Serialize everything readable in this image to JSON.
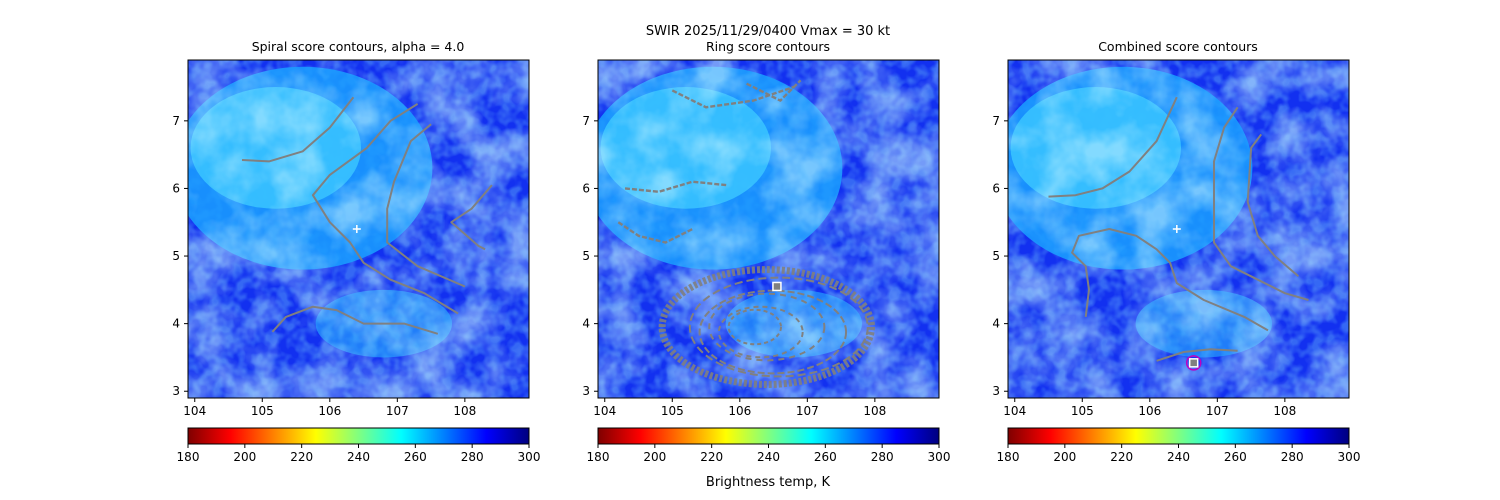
{
  "suptitle": {
    "line1": "SWIR  2025/11/29/0400    Vmax = 30 kt"
  },
  "colorbar_label": "Brightness temp, K",
  "colormap": {
    "name": "jet_r",
    "stops": [
      "#7f0000",
      "#ff0000",
      "#ff8000",
      "#ffff00",
      "#80ff80",
      "#00ffff",
      "#0080ff",
      "#0000ff",
      "#00007f"
    ]
  },
  "chart_data": [
    {
      "type": "heatmap",
      "title": "Spiral score contours, alpha =  4.0",
      "xlim": [
        103.9,
        108.95
      ],
      "ylim": [
        2.9,
        7.9
      ],
      "xticks": [
        "104",
        "105",
        "106",
        "107",
        "108"
      ],
      "yticks": [
        "3",
        "4",
        "5",
        "6",
        "7"
      ],
      "colorbar": {
        "range": [
          180,
          300
        ],
        "ticks": [
          "180",
          "200",
          "220",
          "240",
          "260",
          "280",
          "300"
        ]
      },
      "center_marker": {
        "x": 106.4,
        "y": 5.4,
        "color": "#ffffff"
      },
      "contour_color": "#808080",
      "contours": [
        [
          [
            104.7,
            6.42
          ],
          [
            105.1,
            6.4
          ],
          [
            105.6,
            6.55
          ],
          [
            106.0,
            6.9
          ],
          [
            106.35,
            7.35
          ]
        ],
        [
          [
            107.3,
            7.25
          ],
          [
            106.9,
            7.0
          ],
          [
            106.55,
            6.6
          ],
          [
            106.0,
            6.2
          ],
          [
            105.75,
            5.9
          ],
          [
            106.0,
            5.5
          ],
          [
            106.3,
            5.2
          ],
          [
            106.5,
            4.9
          ],
          [
            106.9,
            4.65
          ],
          [
            107.4,
            4.45
          ],
          [
            107.9,
            4.15
          ]
        ],
        [
          [
            107.5,
            6.95
          ],
          [
            107.2,
            6.7
          ],
          [
            106.95,
            6.1
          ],
          [
            106.85,
            5.7
          ],
          [
            106.85,
            5.2
          ],
          [
            107.3,
            4.85
          ],
          [
            108.0,
            4.55
          ]
        ],
        [
          [
            108.4,
            6.05
          ],
          [
            108.1,
            5.7
          ],
          [
            107.8,
            5.5
          ],
          [
            108.2,
            5.15
          ],
          [
            108.3,
            5.1
          ]
        ],
        [
          [
            105.15,
            3.88
          ],
          [
            105.35,
            4.1
          ],
          [
            105.75,
            4.25
          ],
          [
            106.1,
            4.2
          ],
          [
            106.5,
            4.0
          ],
          [
            107.1,
            4.0
          ],
          [
            107.6,
            3.85
          ]
        ]
      ]
    },
    {
      "type": "heatmap",
      "title": "Ring score contours",
      "xlim": [
        103.9,
        108.95
      ],
      "ylim": [
        2.9,
        7.9
      ],
      "xticks": [
        "104",
        "105",
        "106",
        "107",
        "108"
      ],
      "yticks": [
        "3",
        "4",
        "5",
        "6",
        "7"
      ],
      "colorbar": {
        "range": [
          180,
          300
        ],
        "ticks": [
          "180",
          "200",
          "220",
          "240",
          "260",
          "280",
          "300"
        ]
      },
      "box_marker": {
        "x": 106.55,
        "y": 4.55,
        "color": "#ffffff"
      },
      "contour_color": "#808080",
      "ring_region": {
        "cx": 106.4,
        "cy": 3.95,
        "rx": 1.55,
        "ry": 0.85
      },
      "contours": [
        [
          [
            105.0,
            7.45
          ],
          [
            105.5,
            7.2
          ],
          [
            106.2,
            7.3
          ],
          [
            106.8,
            7.5
          ]
        ],
        [
          [
            104.3,
            6.0
          ],
          [
            104.8,
            5.95
          ],
          [
            105.3,
            6.1
          ],
          [
            105.8,
            6.05
          ]
        ],
        [
          [
            104.2,
            5.5
          ],
          [
            104.5,
            5.3
          ],
          [
            104.9,
            5.2
          ],
          [
            105.3,
            5.4
          ]
        ],
        [
          [
            106.1,
            7.55
          ],
          [
            106.6,
            7.3
          ],
          [
            106.9,
            7.6
          ]
        ]
      ]
    },
    {
      "type": "heatmap",
      "title": "Combined score contours",
      "xlim": [
        103.9,
        108.95
      ],
      "ylim": [
        2.9,
        7.9
      ],
      "xticks": [
        "104",
        "105",
        "106",
        "107",
        "108"
      ],
      "yticks": [
        "3",
        "4",
        "5",
        "6",
        "7"
      ],
      "colorbar": {
        "range": [
          180,
          300
        ],
        "ticks": [
          "180",
          "200",
          "220",
          "240",
          "260",
          "280",
          "300"
        ]
      },
      "center_marker": {
        "x": 106.4,
        "y": 5.4,
        "color": "#ffffff"
      },
      "box_marker": {
        "x": 106.65,
        "y": 3.42,
        "color": "#ffffff",
        "ring_color": "#c000c0"
      },
      "contour_color": "#808080",
      "contours": [
        [
          [
            104.5,
            5.88
          ],
          [
            104.9,
            5.9
          ],
          [
            105.3,
            6.0
          ],
          [
            105.7,
            6.25
          ],
          [
            106.1,
            6.7
          ],
          [
            106.4,
            7.35
          ]
        ],
        [
          [
            107.3,
            7.2
          ],
          [
            107.1,
            6.9
          ],
          [
            106.95,
            6.4
          ],
          [
            106.95,
            5.8
          ],
          [
            106.95,
            5.2
          ],
          [
            107.2,
            4.85
          ],
          [
            107.6,
            4.65
          ],
          [
            108.0,
            4.45
          ],
          [
            108.35,
            4.35
          ]
        ],
        [
          [
            107.65,
            6.8
          ],
          [
            107.5,
            6.6
          ],
          [
            107.45,
            5.8
          ],
          [
            107.6,
            5.3
          ],
          [
            107.85,
            5.0
          ],
          [
            108.2,
            4.7
          ]
        ],
        [
          [
            105.05,
            4.1
          ],
          [
            105.1,
            4.5
          ],
          [
            105.05,
            4.85
          ],
          [
            104.85,
            5.05
          ],
          [
            104.95,
            5.3
          ],
          [
            105.4,
            5.4
          ],
          [
            105.8,
            5.3
          ],
          [
            106.1,
            5.1
          ],
          [
            106.3,
            4.9
          ],
          [
            106.4,
            4.6
          ],
          [
            106.8,
            4.35
          ],
          [
            107.4,
            4.1
          ],
          [
            107.75,
            3.9
          ]
        ],
        [
          [
            106.1,
            3.45
          ],
          [
            106.5,
            3.58
          ],
          [
            106.9,
            3.62
          ],
          [
            107.3,
            3.6
          ]
        ]
      ]
    }
  ]
}
